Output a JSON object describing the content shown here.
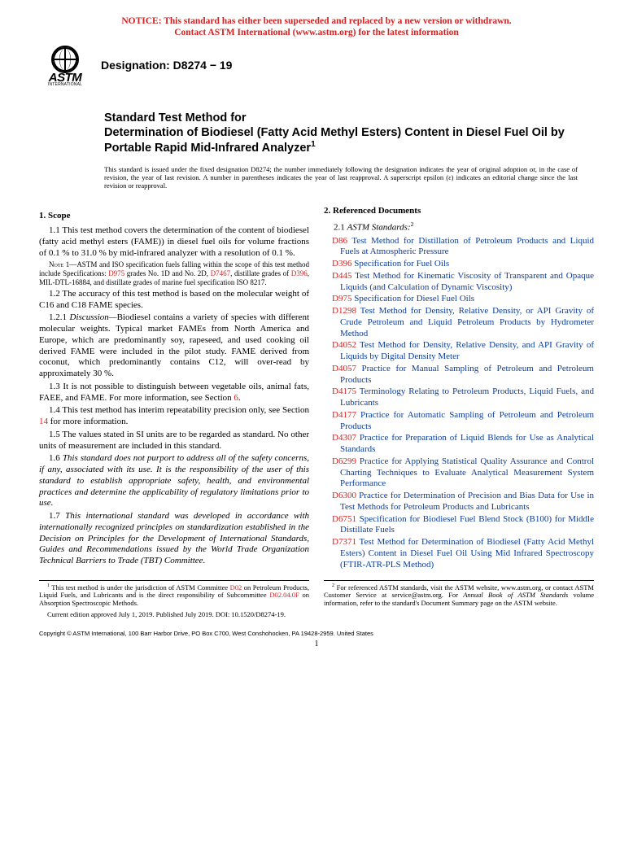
{
  "notice": {
    "line1": "NOTICE: This standard has either been superseded and replaced by a new version or withdrawn.",
    "line2": "Contact ASTM International (www.astm.org) for the latest information",
    "color": "#d42222"
  },
  "logo": {
    "brand": "ASTM",
    "sub": "INTERNATIONAL"
  },
  "designation": "Designation: D8274 − 19",
  "title": {
    "line1": "Standard Test Method for",
    "line2": "Determination of Biodiesel (Fatty Acid Methyl Esters) Content in Diesel Fuel Oil by Portable Rapid Mid-Infrared Analyzer",
    "sup": "1"
  },
  "issuance_note": "This standard is issued under the fixed designation D8274; the number immediately following the designation indicates the year of original adoption or, in the case of revision, the year of last revision. A number in parentheses indicates the year of last reapproval. A superscript epsilon (ε) indicates an editorial change since the last revision or reapproval.",
  "scope": {
    "heading": "1. Scope",
    "p1_1": "1.1 This test method covers the determination of the content of biodiesel (fatty acid methyl esters (FAME)) in diesel fuel oils for volume fractions of 0.1 % to 31.0 % by mid-infrared analyzer with a resolution of 0.1 %.",
    "note1_prefix": "Note 1—",
    "note1_a": "ASTM and ISO specification fuels falling within the scope of this test method include Specifications: ",
    "note1_d975": "D975",
    "note1_b": " grades No. 1D and No. 2D, ",
    "note1_d7467": "D7467",
    "note1_c": ", distillate grades of ",
    "note1_d396": "D396",
    "note1_d": ", MIL-DTL-16884, and distillate grades of marine fuel specification ISO 8217.",
    "p1_2": "1.2 The accuracy of this test method is based on the molecular weight of C16 and C18 FAME species.",
    "p1_2_1": "1.2.1 Discussion—Biodiesel contains a variety of species with different molecular weights. Typical market FAMEs from North America and Europe, which are predominantly soy, rapeseed, and used cooking oil derived FAME were included in the pilot study. FAME derived from coconut, which predominantly contains C12, will over-read by approximately 30 %.",
    "p1_3_a": "1.3 It is not possible to distinguish between vegetable oils, animal fats, FAEE, and FAME. For more information, see Section ",
    "p1_3_link": "6",
    "p1_3_b": ".",
    "p1_4_a": "1.4 This test method has interim repeatability precision only, see Section ",
    "p1_4_link": "14",
    "p1_4_b": " for more information.",
    "p1_5": "1.5 The values stated in SI units are to be regarded as standard. No other units of measurement are included in this standard.",
    "p1_6": "1.6 This standard does not purport to address all of the safety concerns, if any, associated with its use. It is the responsibility of the user of this standard to establish appropriate safety, health, and environmental practices and determine the applicability of regulatory limitations prior to use.",
    "p1_7": "1.7 This international standard was developed in accordance with internationally recognized principles on standardization established in the Decision on Principles for the Development of International Standards, Guides and Recommendations issued by the World Trade Organization Technical Barriers to Trade (TBT) Committee."
  },
  "refs": {
    "heading": "2. Referenced Documents",
    "sub": "2.1 ASTM Standards:",
    "sup": "2",
    "items": [
      {
        "code": "D86",
        "text": "Test Method for Distillation of Petroleum Products and Liquid Fuels at Atmospheric Pressure"
      },
      {
        "code": "D396",
        "text": "Specification for Fuel Oils"
      },
      {
        "code": "D445",
        "text": "Test Method for Kinematic Viscosity of Transparent and Opaque Liquids (and Calculation of Dynamic Viscosity)"
      },
      {
        "code": "D975",
        "text": "Specification for Diesel Fuel Oils"
      },
      {
        "code": "D1298",
        "text": "Test Method for Density, Relative Density, or API Gravity of Crude Petroleum and Liquid Petroleum Products by Hydrometer Method"
      },
      {
        "code": "D4052",
        "text": "Test Method for Density, Relative Density, and API Gravity of Liquids by Digital Density Meter"
      },
      {
        "code": "D4057",
        "text": "Practice for Manual Sampling of Petroleum and Petroleum Products"
      },
      {
        "code": "D4175",
        "text": "Terminology Relating to Petroleum Products, Liquid Fuels, and Lubricants"
      },
      {
        "code": "D4177",
        "text": "Practice for Automatic Sampling of Petroleum and Petroleum Products"
      },
      {
        "code": "D4307",
        "text": "Practice for Preparation of Liquid Blends for Use as Analytical Standards"
      },
      {
        "code": "D6299",
        "text": "Practice for Applying Statistical Quality Assurance and Control Charting Techniques to Evaluate Analytical Measurement System Performance"
      },
      {
        "code": "D6300",
        "text": "Practice for Determination of Precision and Bias Data for Use in Test Methods for Petroleum Products and Lubricants"
      },
      {
        "code": "D6751",
        "text": "Specification for Biodiesel Fuel Blend Stock (B100) for Middle Distillate Fuels"
      },
      {
        "code": "D7371",
        "text": "Test Method for Determination of Biodiesel (Fatty Acid Methyl Esters) Content in Diesel Fuel Oil Using Mid Infrared Spectroscopy (FTIR-ATR-PLS Method)"
      }
    ]
  },
  "footnotes": {
    "f1_a": " This test method is under the jurisdiction of ASTM Committee ",
    "f1_d02": "D02",
    "f1_b": " on Petroleum Products, Liquid Fuels, and Lubricants and is the direct responsibility of Subcommittee ",
    "f1_sub": "D02.04.0F",
    "f1_c": " on Absorption Spectroscopic Methods.",
    "f1_d": "Current edition approved July 1, 2019. Published July 2019. DOI: 10.1520/D8274-19.",
    "f2_a": " For referenced ASTM standards, visit the ASTM website, www.astm.org, or contact ASTM Customer Service at service@astm.org. For ",
    "f2_i": "Annual Book of ASTM Standards",
    "f2_b": " volume information, refer to the standard's Document Summary page on the ASTM website."
  },
  "copyright": "Copyright © ASTM International, 100 Barr Harbor Drive, PO Box C700, West Conshohocken, PA 19428-2959. United States",
  "page_number": "1",
  "colors": {
    "link": "#0a3c9b",
    "red": "#d42222"
  }
}
